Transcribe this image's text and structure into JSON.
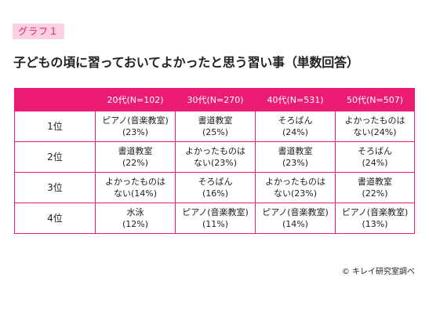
{
  "badge": "グラフ１",
  "title": "子どもの頃に習っておいてよかったと思う習い事（単数回答）",
  "table": {
    "headers": [
      "",
      "20代(N=102)",
      "30代(N=270)",
      "40代(N=531)",
      "50代(N=507)"
    ],
    "rows": [
      {
        "rank": "1位",
        "cells": [
          [
            "ピアノ(音楽教室)",
            "(23%)"
          ],
          [
            "書道教室",
            "(25%)"
          ],
          [
            "そろばん",
            "(24%)"
          ],
          [
            "よかったものは",
            "ない(24%)"
          ]
        ]
      },
      {
        "rank": "2位",
        "cells": [
          [
            "書道教室",
            "(22%)"
          ],
          [
            "よかったものは",
            "ない(23%)"
          ],
          [
            "書道教室",
            "(23%)"
          ],
          [
            "そろばん",
            "(24%)"
          ]
        ]
      },
      {
        "rank": "3位",
        "cells": [
          [
            "よかったものは",
            "ない(14%)"
          ],
          [
            "そろばん",
            "(16%)"
          ],
          [
            "よかったものは",
            "ない(23%)"
          ],
          [
            "書道教室",
            "(22%)"
          ]
        ]
      },
      {
        "rank": "4位",
        "cells": [
          [
            "水泳",
            "(12%)"
          ],
          [
            "ピアノ(音楽教室)",
            "(11%)"
          ],
          [
            "ピアノ(音楽教室)",
            "(14%)"
          ],
          [
            "ピアノ(音楽教室)",
            "(13%)"
          ]
        ]
      }
    ]
  },
  "credit": "© キレイ研究室調べ",
  "colors": {
    "accent": "#ec1c74",
    "badge_bg": "#fbd1e2",
    "text": "#222222"
  }
}
